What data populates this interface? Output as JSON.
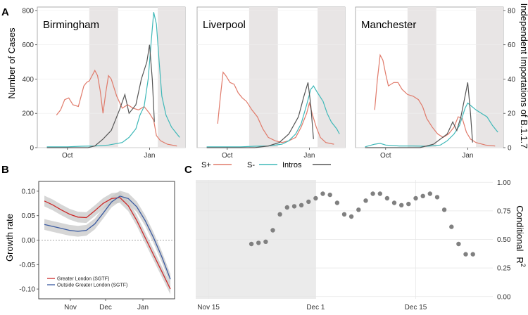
{
  "chart_data": [
    {
      "type": "line",
      "panel_label": "A",
      "ylabel": "Number of Cases",
      "ylabel_right": "Independent Importations of B.1.1.7",
      "ylim": [
        0,
        820
      ],
      "ylim_right": [
        0,
        82
      ],
      "yticks": [
        0,
        200,
        400,
        600,
        800
      ],
      "yticks_right": [
        0,
        20,
        40,
        60,
        80
      ],
      "xticks": [
        "Oct",
        "Jan"
      ],
      "legend": [
        {
          "name": "S+",
          "color": "#e07a6a"
        },
        {
          "name": "S-",
          "color": "#3fb8b8"
        },
        {
          "name": "Intros",
          "color": "#555555"
        }
      ],
      "facets": [
        {
          "title": "Birmingham",
          "series": {
            "S+": [
              [
                0.2,
                190
              ],
              [
                0.5,
                220
              ],
              [
                0.8,
                280
              ],
              [
                1.1,
                290
              ],
              [
                1.4,
                250
              ],
              [
                1.8,
                240
              ],
              [
                2.0,
                300
              ],
              [
                2.2,
                360
              ],
              [
                2.4,
                380
              ],
              [
                2.6,
                390
              ],
              [
                2.8,
                420
              ],
              [
                3.0,
                450
              ],
              [
                3.2,
                420
              ],
              [
                3.4,
                330
              ],
              [
                3.6,
                200
              ],
              [
                3.8,
                320
              ],
              [
                4.0,
                420
              ],
              [
                4.2,
                400
              ],
              [
                4.6,
                300
              ],
              [
                5.0,
                230
              ],
              [
                5.4,
                250
              ],
              [
                5.8,
                230
              ],
              [
                6.2,
                220
              ],
              [
                6.6,
                240
              ],
              [
                7.0,
                200
              ],
              [
                7.3,
                160
              ],
              [
                7.5,
                70
              ],
              [
                7.8,
                40
              ],
              [
                8.3,
                20
              ],
              [
                9.0,
                10
              ]
            ],
            "S-": [
              [
                -0.5,
                5
              ],
              [
                1.0,
                5
              ],
              [
                2.0,
                8
              ],
              [
                3.0,
                10
              ],
              [
                4.0,
                15
              ],
              [
                5.0,
                30
              ],
              [
                5.5,
                60
              ],
              [
                6.0,
                110
              ],
              [
                6.3,
                190
              ],
              [
                6.6,
                240
              ],
              [
                6.9,
                400
              ],
              [
                7.1,
                600
              ],
              [
                7.3,
                790
              ],
              [
                7.5,
                720
              ],
              [
                7.7,
                500
              ],
              [
                7.9,
                300
              ],
              [
                8.2,
                190
              ],
              [
                8.6,
                120
              ],
              [
                9.0,
                80
              ],
              [
                9.2,
                60
              ]
            ],
            "Intros": [
              [
                -0.5,
                0
              ],
              [
                2.5,
                0
              ],
              [
                3.0,
                1
              ],
              [
                3.6,
                5
              ],
              [
                4.2,
                10
              ],
              [
                4.8,
                22
              ],
              [
                5.2,
                31
              ],
              [
                5.5,
                20
              ],
              [
                6.0,
                25
              ],
              [
                6.4,
                40
              ],
              [
                6.8,
                50
              ],
              [
                7.0,
                60
              ],
              [
                7.2,
                40
              ],
              [
                7.35,
                15
              ]
            ]
          }
        },
        {
          "title": "Liverpool",
          "series": {
            "S+": [
              [
                0.3,
                140
              ],
              [
                0.5,
                300
              ],
              [
                0.7,
                440
              ],
              [
                0.9,
                420
              ],
              [
                1.2,
                380
              ],
              [
                1.5,
                370
              ],
              [
                1.8,
                320
              ],
              [
                2.1,
                290
              ],
              [
                2.4,
                270
              ],
              [
                2.8,
                220
              ],
              [
                3.2,
                180
              ],
              [
                3.6,
                110
              ],
              [
                4.0,
                60
              ],
              [
                4.5,
                40
              ],
              [
                5.0,
                30
              ],
              [
                5.5,
                40
              ],
              [
                6.0,
                60
              ],
              [
                6.4,
                120
              ],
              [
                6.8,
                200
              ],
              [
                7.0,
                260
              ],
              [
                7.2,
                200
              ],
              [
                7.5,
                120
              ],
              [
                7.8,
                60
              ],
              [
                8.2,
                30
              ],
              [
                8.8,
                20
              ]
            ],
            "S-": [
              [
                -0.5,
                5
              ],
              [
                1.0,
                5
              ],
              [
                2.0,
                5
              ],
              [
                3.0,
                8
              ],
              [
                4.0,
                10
              ],
              [
                5.0,
                20
              ],
              [
                5.5,
                40
              ],
              [
                6.0,
                80
              ],
              [
                6.4,
                140
              ],
              [
                6.8,
                250
              ],
              [
                7.1,
                340
              ],
              [
                7.3,
                360
              ],
              [
                7.6,
                320
              ],
              [
                8.0,
                270
              ],
              [
                8.3,
                200
              ],
              [
                8.6,
                150
              ],
              [
                9.0,
                110
              ],
              [
                9.2,
                80
              ]
            ],
            "Intros": [
              [
                -0.5,
                0
              ],
              [
                3.0,
                0
              ],
              [
                4.0,
                1
              ],
              [
                4.8,
                3
              ],
              [
                5.5,
                8
              ],
              [
                6.2,
                18
              ],
              [
                6.6,
                30
              ],
              [
                6.9,
                38
              ],
              [
                7.1,
                25
              ],
              [
                7.3,
                5
              ]
            ]
          }
        },
        {
          "title": "Manchester",
          "series": {
            "S+": [
              [
                0.2,
                220
              ],
              [
                0.4,
                400
              ],
              [
                0.6,
                540
              ],
              [
                0.8,
                510
              ],
              [
                1.0,
                430
              ],
              [
                1.2,
                360
              ],
              [
                1.6,
                380
              ],
              [
                1.9,
                380
              ],
              [
                2.2,
                340
              ],
              [
                2.6,
                310
              ],
              [
                3.0,
                300
              ],
              [
                3.4,
                280
              ],
              [
                3.7,
                240
              ],
              [
                4.0,
                170
              ],
              [
                4.4,
                120
              ],
              [
                4.8,
                80
              ],
              [
                5.2,
                60
              ],
              [
                5.6,
                80
              ],
              [
                6.0,
                120
              ],
              [
                6.3,
                180
              ],
              [
                6.6,
                170
              ],
              [
                6.9,
                90
              ],
              [
                7.2,
                50
              ],
              [
                7.6,
                30
              ],
              [
                8.3,
                15
              ],
              [
                9.0,
                10
              ]
            ],
            "S-": [
              [
                -0.5,
                5
              ],
              [
                0.2,
                20
              ],
              [
                0.6,
                25
              ],
              [
                1.0,
                15
              ],
              [
                2.0,
                10
              ],
              [
                3.0,
                10
              ],
              [
                4.0,
                8
              ],
              [
                5.0,
                15
              ],
              [
                5.5,
                40
              ],
              [
                6.0,
                80
              ],
              [
                6.4,
                130
              ],
              [
                6.8,
                230
              ],
              [
                7.0,
                260
              ],
              [
                7.3,
                240
              ],
              [
                7.6,
                220
              ],
              [
                8.0,
                200
              ],
              [
                8.4,
                180
              ],
              [
                8.8,
                130
              ],
              [
                9.2,
                90
              ]
            ],
            "Intros": [
              [
                -0.5,
                0
              ],
              [
                3.5,
                0
              ],
              [
                4.5,
                2
              ],
              [
                5.5,
                8
              ],
              [
                5.9,
                15
              ],
              [
                6.2,
                10
              ],
              [
                6.5,
                18
              ],
              [
                6.8,
                30
              ],
              [
                7.0,
                38
              ],
              [
                7.2,
                20
              ],
              [
                7.35,
                3
              ]
            ]
          }
        }
      ]
    },
    {
      "type": "line",
      "panel_label": "B",
      "ylabel": "Growth rate",
      "ylim": [
        -0.12,
        0.12
      ],
      "yticks": [
        0.1,
        0.05,
        0.0,
        -0.05,
        -0.1
      ],
      "ytick_labels": [
        "0.10",
        "0.05",
        "0.00",
        "-0.05",
        "-0.10"
      ],
      "xticks": [
        "Nov",
        "Dec",
        "Jan"
      ],
      "series": [
        {
          "name": "Greater London (SGTF)",
          "color": "#cc2a2a",
          "values": [
            [
              0,
              0.08
            ],
            [
              1,
              0.072
            ],
            [
              2,
              0.062
            ],
            [
              3,
              0.053
            ],
            [
              4,
              0.047
            ],
            [
              5,
              0.046
            ],
            [
              6,
              0.06
            ],
            [
              7,
              0.075
            ],
            [
              8,
              0.085
            ],
            [
              9,
              0.087
            ],
            [
              10,
              0.07
            ],
            [
              11,
              0.04
            ],
            [
              12,
              0.005
            ],
            [
              13,
              -0.03
            ],
            [
              14,
              -0.065
            ],
            [
              15,
              -0.1
            ]
          ]
        },
        {
          "name": "Outside Greater London (SGTF)",
          "color": "#3a5aa0",
          "values": [
            [
              0,
              0.032
            ],
            [
              1,
              0.028
            ],
            [
              2,
              0.024
            ],
            [
              3,
              0.02
            ],
            [
              4,
              0.018
            ],
            [
              5,
              0.02
            ],
            [
              6,
              0.033
            ],
            [
              7,
              0.055
            ],
            [
              8,
              0.078
            ],
            [
              9,
              0.09
            ],
            [
              10,
              0.085
            ],
            [
              11,
              0.068
            ],
            [
              12,
              0.04
            ],
            [
              13,
              0.005
            ],
            [
              14,
              -0.035
            ],
            [
              15,
              -0.08
            ]
          ]
        }
      ]
    },
    {
      "type": "scatter",
      "panel_label": "C",
      "ylabel": "Conditional",
      "ylabel_sup": "R",
      "ylabel_exp": "2",
      "ylim": [
        -0.02,
        1.02
      ],
      "yticks": [
        0.0,
        0.25,
        0.5,
        0.75,
        1.0
      ],
      "ytick_labels": [
        "0.00",
        "0.25",
        "0.50",
        "0.75",
        "1.00"
      ],
      "xticks": [
        "Nov 15",
        "Dec 1",
        "Dec 15"
      ],
      "points": [
        [
          7,
          0.46
        ],
        [
          8,
          0.47
        ],
        [
          9,
          0.48
        ],
        [
          10,
          0.58
        ],
        [
          11,
          0.72
        ],
        [
          12,
          0.78
        ],
        [
          13,
          0.79
        ],
        [
          14,
          0.8
        ],
        [
          15,
          0.83
        ],
        [
          16,
          0.86
        ],
        [
          17,
          0.9
        ],
        [
          18,
          0.89
        ],
        [
          19,
          0.82
        ],
        [
          20,
          0.72
        ],
        [
          21,
          0.7
        ],
        [
          22,
          0.76
        ],
        [
          23,
          0.84
        ],
        [
          24,
          0.9
        ],
        [
          25,
          0.9
        ],
        [
          26,
          0.86
        ],
        [
          27,
          0.82
        ],
        [
          28,
          0.8
        ],
        [
          29,
          0.81
        ],
        [
          30,
          0.86
        ],
        [
          31,
          0.88
        ],
        [
          32,
          0.9
        ],
        [
          33,
          0.87
        ],
        [
          34,
          0.76
        ],
        [
          35,
          0.61
        ],
        [
          36,
          0.46
        ],
        [
          37,
          0.37
        ],
        [
          38,
          0.37
        ]
      ]
    }
  ]
}
